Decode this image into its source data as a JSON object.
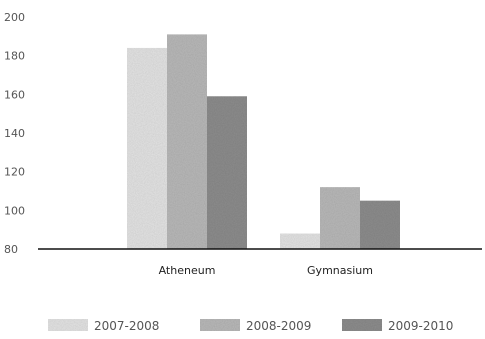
{
  "chart_data": {
    "type": "bar",
    "title": "",
    "xlabel": "",
    "ylabel": "",
    "categories": [
      "Atheneum",
      "Gymnasium"
    ],
    "series": [
      {
        "name": "2007-2008",
        "values": [
          184,
          88
        ],
        "color": "#e4e4e4"
      },
      {
        "name": "2008-2009",
        "values": [
          191,
          112
        ],
        "color": "#b9b9b9"
      },
      {
        "name": "2009-2010",
        "values": [
          159,
          105
        ],
        "color": "#8d8d8d"
      }
    ],
    "ylim": [
      80,
      200
    ],
    "yticks": [
      "80",
      "100",
      "120",
      "140",
      "160",
      "180",
      "200"
    ],
    "grid": false,
    "legend_position": "bottom"
  }
}
